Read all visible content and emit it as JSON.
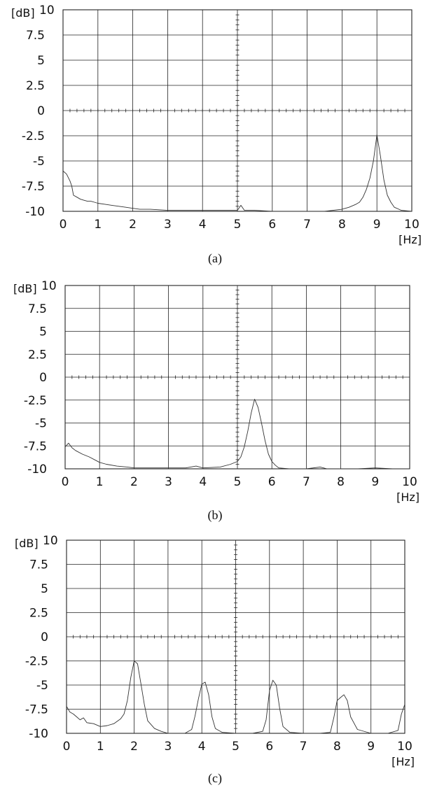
{
  "chart_data": [
    {
      "type": "line",
      "caption": "(a)",
      "ylabel": "[dB]",
      "xlabel": "[Hz]",
      "xlim": [
        0,
        10
      ],
      "ylim": [
        -10,
        10
      ],
      "x_ticks": [
        "0",
        "1",
        "2",
        "3",
        "4",
        "5",
        "6",
        "7",
        "8",
        "9",
        "10"
      ],
      "y_ticks": [
        "10",
        "7.5",
        "5",
        "2.5",
        "0",
        "-2.5",
        "-5",
        "-7.5",
        "-10"
      ],
      "grid": true,
      "series": [
        {
          "x": [
            0,
            0.1,
            0.2,
            0.25,
            0.3,
            0.4,
            0.5,
            0.6,
            0.7,
            0.8,
            0.9,
            1.0,
            1.2,
            1.4,
            1.6,
            1.8,
            2.0,
            2.2,
            2.5,
            3.0,
            3.5,
            4.0,
            4.5,
            5.0,
            5.1,
            5.2,
            5.5,
            6.0,
            6.5,
            7.0,
            7.5,
            8.0,
            8.2,
            8.4,
            8.5,
            8.6,
            8.7,
            8.8,
            8.9,
            9.0,
            9.1,
            9.2,
            9.3,
            9.4,
            9.5,
            9.7,
            10.0
          ],
          "y": [
            -6.0,
            -6.3,
            -7.0,
            -7.5,
            -8.4,
            -8.6,
            -8.8,
            -8.9,
            -9.0,
            -9.0,
            -9.1,
            -9.2,
            -9.3,
            -9.4,
            -9.5,
            -9.6,
            -9.7,
            -9.8,
            -9.8,
            -9.9,
            -9.9,
            -9.9,
            -9.9,
            -9.9,
            -9.4,
            -9.9,
            -9.9,
            -10.0,
            -10.0,
            -10.0,
            -10.0,
            -9.8,
            -9.6,
            -9.3,
            -9.1,
            -8.6,
            -7.8,
            -6.7,
            -5.0,
            -2.4,
            -4.5,
            -6.9,
            -8.4,
            -9.1,
            -9.6,
            -9.9,
            -10.0
          ]
        }
      ]
    },
    {
      "type": "line",
      "caption": "(b)",
      "ylabel": "[dB]",
      "xlabel": "[Hz]",
      "xlim": [
        0,
        10
      ],
      "ylim": [
        -10,
        10
      ],
      "x_ticks": [
        "0",
        "1",
        "2",
        "3",
        "4",
        "5",
        "6",
        "7",
        "8",
        "9",
        "10"
      ],
      "y_ticks": [
        "10",
        "7.5",
        "5",
        "2.5",
        "0",
        "-2.5",
        "-5",
        "-7.5",
        "-10"
      ],
      "grid": true,
      "series": [
        {
          "x": [
            0,
            0.1,
            0.2,
            0.3,
            0.5,
            0.7,
            0.9,
            1.0,
            1.2,
            1.5,
            1.8,
            2.0,
            2.5,
            3.0,
            3.5,
            3.8,
            4.0,
            4.5,
            4.8,
            5.0,
            5.1,
            5.2,
            5.3,
            5.4,
            5.5,
            5.6,
            5.7,
            5.8,
            5.9,
            6.0,
            6.1,
            6.2,
            6.5,
            7.0,
            7.4,
            7.6,
            8.0,
            8.5,
            9.0,
            9.5,
            10.0
          ],
          "y": [
            -7.6,
            -7.2,
            -7.7,
            -8.0,
            -8.4,
            -8.7,
            -9.1,
            -9.3,
            -9.5,
            -9.7,
            -9.8,
            -9.9,
            -9.9,
            -9.9,
            -9.9,
            -9.7,
            -9.9,
            -9.8,
            -9.5,
            -9.2,
            -8.7,
            -7.6,
            -5.9,
            -3.9,
            -2.4,
            -3.3,
            -5.0,
            -6.9,
            -8.4,
            -9.2,
            -9.6,
            -9.9,
            -10.0,
            -10.0,
            -9.8,
            -10.0,
            -10.0,
            -10.0,
            -9.9,
            -10.0,
            -10.0
          ]
        }
      ]
    },
    {
      "type": "line",
      "caption": "(c)",
      "ylabel": "[dB]",
      "xlabel": "[Hz]",
      "xlim": [
        0,
        10
      ],
      "ylim": [
        -10,
        10
      ],
      "x_ticks": [
        "0",
        "1",
        "2",
        "3",
        "4",
        "5",
        "6",
        "7",
        "8",
        "9",
        "10"
      ],
      "y_ticks": [
        "10",
        "7.5",
        "5",
        "2.5",
        "0",
        "-2.5",
        "-5",
        "-7.5",
        "-10"
      ],
      "grid": true,
      "series": [
        {
          "x": [
            0,
            0.1,
            0.2,
            0.3,
            0.4,
            0.5,
            0.6,
            0.8,
            1.0,
            1.2,
            1.4,
            1.6,
            1.7,
            1.8,
            1.9,
            2.0,
            2.1,
            2.2,
            2.3,
            2.4,
            2.6,
            2.8,
            3.0,
            3.5,
            3.7,
            3.8,
            3.9,
            4.0,
            4.1,
            4.2,
            4.3,
            4.4,
            4.6,
            5.0,
            5.5,
            5.8,
            5.9,
            6.0,
            6.1,
            6.2,
            6.3,
            6.4,
            6.6,
            7.0,
            7.5,
            7.8,
            7.9,
            8.0,
            8.1,
            8.2,
            8.3,
            8.4,
            8.6,
            9.0,
            9.5,
            9.8,
            9.9,
            10.0
          ],
          "y": [
            -7.2,
            -7.8,
            -8.0,
            -8.3,
            -8.6,
            -8.4,
            -8.9,
            -9.0,
            -9.3,
            -9.2,
            -9.0,
            -8.5,
            -8.0,
            -6.6,
            -4.2,
            -2.5,
            -2.8,
            -4.9,
            -7.0,
            -8.7,
            -9.5,
            -9.8,
            -10.0,
            -10.0,
            -9.6,
            -8.2,
            -6.4,
            -4.9,
            -4.7,
            -6.0,
            -8.3,
            -9.5,
            -9.9,
            -10.0,
            -10.0,
            -9.8,
            -8.6,
            -5.6,
            -4.5,
            -5.0,
            -7.4,
            -9.3,
            -9.9,
            -10.0,
            -10.0,
            -9.9,
            -8.4,
            -6.6,
            -6.3,
            -6.0,
            -6.6,
            -8.3,
            -9.6,
            -10.0,
            -10.0,
            -9.7,
            -8.0,
            -7.0
          ]
        }
      ]
    }
  ]
}
